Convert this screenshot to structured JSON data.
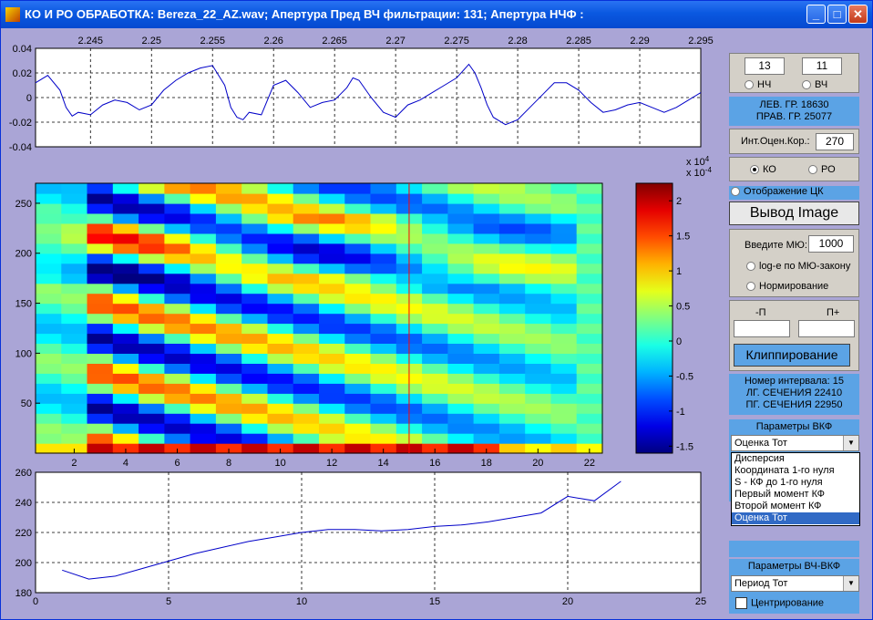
{
  "window": {
    "title": "КО И РО ОБРАБОТКА: Bereza_22_AZ.wav;  Апертура Пред ВЧ фильтрации: 131;  Апертура НЧФ :",
    "minimize_label": "_",
    "maximize_label": "□",
    "close_label": "✕"
  },
  "controls": {
    "nch_value": "13",
    "vch_value": "11",
    "nch_label": "НЧ",
    "vch_label": "ВЧ",
    "lev_gr": "ЛЕВ. ГР.  18630",
    "prav_gr": "ПРАВ. ГР. 25077",
    "int_label": "Инт.Оцен.Кор.:",
    "int_value": "270",
    "ko_label": "КО",
    "ro_label": "РО",
    "otobr_label": "Отображение ЦК",
    "vyvod_label": "Вывод Image",
    "mu_label": "Введите МЮ:",
    "mu_value": "1000",
    "log_label": "log-e по МЮ-закону",
    "norm_label": "Нормирование",
    "minus_p_label": "-П",
    "plus_p_label": "П+",
    "minus_p_value": "",
    "plus_p_value": "",
    "clip_label": "Клиппирование",
    "interval_line1": "Номер интервала: 15",
    "interval_line2": "ЛГ. СЕЧЕНИЯ 22410",
    "interval_line3": "ПГ. СЕЧЕНИЯ 22950",
    "vkf_title": "Параметры ВКФ",
    "vkf_selected": "Оценка Тот",
    "vkf_options": [
      "Дисперсия",
      "Координата 1-го нуля",
      "S - КФ до 1-го нуля",
      "Первый момент КФ",
      "Второй момент КФ",
      "Оценка Тот"
    ],
    "vchvkf_title": "Параметры ВЧ-ВКФ",
    "vchvkf_selected": "Период Тот",
    "center_label": "Центрирование"
  },
  "chart_data": [
    {
      "type": "line",
      "name_hint": "waveform",
      "x_ticks": [
        "2.245",
        "2.25",
        "2.255",
        "2.26",
        "2.265",
        "2.27",
        "2.275",
        "2.28",
        "2.285",
        "2.29",
        "2.295"
      ],
      "xlim": [
        2.2405,
        2.295
      ],
      "y_ticks": [
        "0.04",
        "0.02",
        "0",
        "-0.02",
        "-0.04"
      ],
      "ylim": [
        -0.04,
        0.04
      ],
      "x": [
        2.2405,
        2.2415,
        2.2425,
        2.243,
        2.2435,
        2.244,
        2.245,
        2.246,
        2.247,
        2.248,
        2.249,
        2.25,
        2.251,
        2.252,
        2.253,
        2.254,
        2.255,
        2.256,
        2.2565,
        2.257,
        2.2575,
        2.258,
        2.259,
        2.26,
        2.261,
        2.262,
        2.263,
        2.264,
        2.265,
        2.266,
        2.2665,
        2.267,
        2.268,
        2.269,
        2.27,
        2.271,
        2.272,
        2.273,
        2.274,
        2.275,
        2.276,
        2.2765,
        2.277,
        2.2775,
        2.278,
        2.279,
        2.28,
        2.281,
        2.282,
        2.283,
        2.284,
        2.285,
        2.286,
        2.287,
        2.288,
        2.289,
        2.29,
        2.291,
        2.292,
        2.293,
        2.294,
        2.295
      ],
      "y": [
        0.012,
        0.018,
        0.006,
        -0.008,
        -0.015,
        -0.012,
        -0.014,
        -0.006,
        -0.002,
        -0.004,
        -0.01,
        -0.006,
        0.006,
        0.014,
        0.02,
        0.024,
        0.026,
        0.01,
        -0.008,
        -0.016,
        -0.018,
        -0.012,
        -0.014,
        0.01,
        0.014,
        0.004,
        -0.008,
        -0.004,
        -0.002,
        0.008,
        0.016,
        0.014,
        0.0,
        -0.012,
        -0.016,
        -0.006,
        -0.002,
        0.004,
        0.01,
        0.016,
        0.027,
        0.02,
        0.008,
        -0.006,
        -0.016,
        -0.022,
        -0.018,
        -0.008,
        0.002,
        0.012,
        0.012,
        0.006,
        -0.004,
        -0.012,
        -0.01,
        -0.006,
        -0.004,
        -0.008,
        -0.012,
        -0.008,
        -0.002,
        0.004
      ],
      "grid": true
    },
    {
      "type": "heatmap",
      "name_hint": "correlation-image",
      "x_ticks": [
        "2",
        "4",
        "6",
        "8",
        "10",
        "12",
        "14",
        "16",
        "18",
        "20",
        "22"
      ],
      "xlim": [
        0.5,
        22.5
      ],
      "y_ticks": [
        "50",
        "100",
        "150",
        "200",
        "250"
      ],
      "ylim": [
        0,
        270
      ],
      "columns": 22,
      "rows": 27,
      "marker_column": 15,
      "colorbar_ticks": [
        "2",
        "1.5",
        "1",
        "0.5",
        "0",
        "-0.5",
        "-1",
        "-1.5"
      ],
      "colorbar_range": [
        -1.6,
        2.25
      ],
      "colorbar_exponent_1": "x 10",
      "colorbar_exponent_1_power": "4",
      "colorbar_exponent_2": "x 10",
      "colorbar_exponent_2_power": "-4"
    },
    {
      "type": "line",
      "name_hint": "bottom-plot",
      "x_ticks": [
        "0",
        "5",
        "10",
        "15",
        "20",
        "25"
      ],
      "xlim": [
        0,
        25
      ],
      "y_ticks": [
        "260",
        "240",
        "220",
        "200",
        "180"
      ],
      "ylim": [
        180,
        260
      ],
      "x": [
        1,
        2,
        3,
        4,
        5,
        6,
        7,
        8,
        9,
        10,
        11,
        12,
        13,
        14,
        15,
        16,
        17,
        18,
        19,
        20,
        21,
        22
      ],
      "y": [
        195,
        189,
        191,
        196,
        201,
        206,
        210,
        214,
        217,
        220,
        222,
        222,
        221,
        222,
        224,
        225,
        227,
        230,
        233,
        244,
        241,
        254
      ],
      "grid": true
    }
  ]
}
